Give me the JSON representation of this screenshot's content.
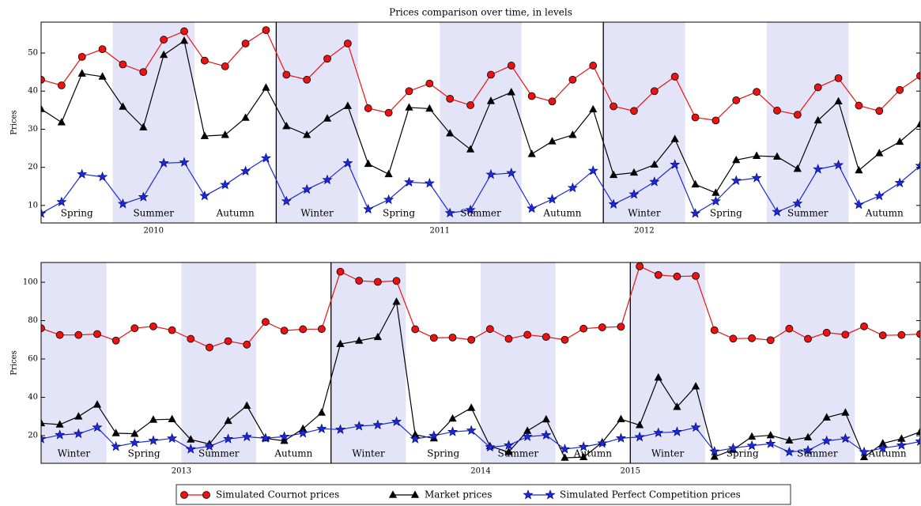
{
  "chart_data": [
    {
      "type": "line",
      "title": "Prices comparison over time, in levels",
      "ylabel": "Prices",
      "categories": [
        null,
        null,
        null,
        null,
        null,
        null,
        null,
        null,
        null,
        null,
        null,
        null,
        null,
        null,
        null,
        null,
        null,
        null,
        null,
        null,
        null,
        null,
        null,
        null,
        null,
        null,
        null,
        null,
        null,
        null,
        null,
        null,
        null,
        null,
        null,
        null,
        null,
        null,
        null,
        null,
        null,
        null,
        null,
        null
      ],
      "xlim": [
        0,
        43
      ],
      "ylim": [
        5.4,
        58.1
      ],
      "yticks": [
        10,
        20,
        30,
        40,
        50
      ],
      "series": [
        {
          "name": "Simulated Cournot prices",
          "color": "#ee1111",
          "marker": "circle",
          "values": [
            43,
            41.5,
            49,
            51,
            47,
            45,
            53.5,
            55.7,
            48,
            46.5,
            52.5,
            56,
            44.3,
            43,
            48.5,
            52.5,
            35.5,
            34.3,
            40,
            42,
            38,
            36.3,
            44.3,
            46.7,
            38.7,
            37.3,
            43,
            46.7,
            36,
            34.8,
            40,
            43.8,
            33.1,
            32.3,
            37.6,
            39.8,
            34.9,
            33.8,
            41,
            43.4,
            36.2,
            34.8,
            40.3,
            44
          ]
        },
        {
          "name": "Market prices",
          "color": "#000000",
          "marker": "triangle",
          "values": [
            35.3,
            31.8,
            44.6,
            43.8,
            35.9,
            30.5,
            49.5,
            53.2,
            28.2,
            28.5,
            33,
            40.9,
            30.8,
            28.5,
            32.8,
            36.1,
            20.9,
            18.2,
            35.7,
            35.4,
            28.9,
            24.7,
            37.4,
            39.7,
            23.5,
            26.8,
            28.5,
            35.2,
            18,
            18.6,
            20.7,
            27.4,
            15.5,
            13.3,
            21.9,
            23,
            22.8,
            19.6,
            32.3,
            37.3,
            19.2,
            23.7,
            26.7,
            31.3
          ]
        },
        {
          "name": "Simulated Perfect Competition prices",
          "color": "#1a2ad8",
          "marker": "star",
          "values": [
            7.9,
            10.9,
            18.2,
            17.5,
            10.4,
            12.2,
            21.1,
            21.3,
            12.5,
            15.4,
            19,
            22.4,
            11.1,
            14.2,
            16.7,
            21.1,
            9,
            11.5,
            16.1,
            15.8,
            8,
            8.8,
            18.1,
            18.5,
            9.2,
            11.6,
            14.6,
            19.1,
            10.3,
            12.9,
            16.2,
            20.7,
            7.9,
            11.1,
            16.5,
            17.2,
            8.3,
            10.5,
            19.5,
            20.6,
            10.2,
            12.5,
            15.9,
            20.4
          ]
        }
      ],
      "bands": [
        {
          "label": "Spring",
          "start": -0.5,
          "end": 3.5,
          "shaded": false
        },
        {
          "label": "Summer",
          "start": 3.5,
          "end": 7.5,
          "shaded": true
        },
        {
          "label": "Autumn",
          "start": 7.5,
          "end": 11.5,
          "shaded": false
        },
        {
          "label": "Winter",
          "start": 11.5,
          "end": 15.5,
          "shaded": true
        },
        {
          "label": "Spring",
          "start": 15.5,
          "end": 19.5,
          "shaded": false
        },
        {
          "label": "Summer",
          "start": 19.5,
          "end": 23.5,
          "shaded": true
        },
        {
          "label": "Autumn",
          "start": 23.5,
          "end": 27.5,
          "shaded": false
        },
        {
          "label": "Winter",
          "start": 27.5,
          "end": 31.5,
          "shaded": true
        },
        {
          "label": "Spring",
          "start": 31.5,
          "end": 35.5,
          "shaded": false
        },
        {
          "label": "Summer",
          "start": 35.5,
          "end": 39.5,
          "shaded": true
        },
        {
          "label": "Autumn",
          "start": 39.5,
          "end": 43.5,
          "shaded": false
        }
      ],
      "year_lines": [
        11.5,
        27.5
      ],
      "year_labels": [
        {
          "label": "2010",
          "at": 5.5
        },
        {
          "label": "2011",
          "at": 19.5
        },
        {
          "label": "2012",
          "at": 29.5
        }
      ]
    },
    {
      "type": "line",
      "ylabel": "Prices",
      "categories": [
        null,
        null,
        null,
        null,
        null,
        null,
        null,
        null,
        null,
        null,
        null,
        null,
        null,
        null,
        null,
        null,
        null,
        null,
        null,
        null,
        null,
        null,
        null,
        null,
        null,
        null,
        null,
        null,
        null,
        null,
        null,
        null,
        null,
        null,
        null,
        null,
        null,
        null,
        null,
        null,
        null,
        null,
        null,
        null,
        null,
        null,
        null,
        null
      ],
      "xlim": [
        0,
        47
      ],
      "ylim": [
        5.6,
        110.3
      ],
      "yticks": [
        20,
        40,
        60,
        80,
        100
      ],
      "series": [
        {
          "color": "#ee1111",
          "marker": "circle",
          "values": [
            76,
            72.5,
            72.5,
            73,
            69.6,
            76,
            77,
            75,
            70.5,
            66,
            69.3,
            67.5,
            79.3,
            74.8,
            75.5,
            75.6,
            105.5,
            100.8,
            100.2,
            100.7,
            75.5,
            71,
            71.2,
            70,
            75.6,
            70.5,
            72.6,
            71.5,
            70,
            75.8,
            76.5,
            76.8,
            108.3,
            103.8,
            103,
            103.3,
            75,
            70.6,
            70.8,
            69.8,
            75.8,
            70.5,
            73.7,
            72.7,
            77,
            72.3,
            72.5,
            73
          ]
        },
        {
          "color": "#000000",
          "marker": "triangle",
          "values": [
            26.5,
            25.8,
            30,
            36.2,
            21.3,
            21,
            28.3,
            28.6,
            18,
            15.6,
            27.7,
            35.6,
            18.6,
            17.3,
            23.6,
            32,
            67.8,
            69.5,
            71.4,
            89.8,
            20.5,
            18.6,
            28.9,
            34.5,
            14.5,
            11.5,
            22.5,
            28.5,
            8.5,
            8.8,
            16.5,
            28.6,
            25.5,
            50.3,
            35,
            45.7,
            9,
            12.7,
            19.5,
            20.2,
            17.5,
            19.1,
            29.5,
            32,
            8.8,
            16,
            18.4,
            22
          ]
        },
        {
          "color": "#1a2ad8",
          "marker": "star",
          "values": [
            18.3,
            20.4,
            21,
            24.3,
            14.3,
            16.3,
            17.4,
            18.6,
            13,
            14.5,
            18.3,
            19.4,
            18.7,
            19.5,
            21.3,
            23.6,
            23.2,
            25,
            25.6,
            27.3,
            18.3,
            20,
            22,
            22.7,
            14,
            15,
            19.5,
            20.3,
            13,
            14.2,
            16,
            18.7,
            19.3,
            21.5,
            22,
            24.3,
            11.8,
            13.5,
            14.8,
            15.8,
            11.5,
            12.3,
            17.3,
            18.5,
            11.5,
            13.5,
            15,
            17
          ]
        }
      ],
      "bands": [
        {
          "label": "Winter",
          "start": -0.5,
          "end": 3.5,
          "shaded": true
        },
        {
          "label": "Spring",
          "start": 3.5,
          "end": 7.5,
          "shaded": false
        },
        {
          "label": "Summer",
          "start": 7.5,
          "end": 11.5,
          "shaded": true
        },
        {
          "label": "Autumn",
          "start": 11.5,
          "end": 15.5,
          "shaded": false
        },
        {
          "label": "Winter",
          "start": 15.5,
          "end": 19.5,
          "shaded": true
        },
        {
          "label": "Spring",
          "start": 19.5,
          "end": 23.5,
          "shaded": false
        },
        {
          "label": "Summer",
          "start": 23.5,
          "end": 27.5,
          "shaded": true
        },
        {
          "label": "Autumn",
          "start": 27.5,
          "end": 31.5,
          "shaded": false
        },
        {
          "label": "Winter",
          "start": 31.5,
          "end": 35.5,
          "shaded": true
        },
        {
          "label": "Spring",
          "start": 35.5,
          "end": 39.5,
          "shaded": false
        },
        {
          "label": "Summer",
          "start": 39.5,
          "end": 43.5,
          "shaded": true
        },
        {
          "label": "Autumn",
          "start": 43.5,
          "end": 47.5,
          "shaded": false
        }
      ],
      "year_lines": [
        15.5,
        31.5
      ],
      "year_labels": [
        {
          "label": "2013",
          "at": 7.5
        },
        {
          "label": "2014",
          "at": 23.5
        },
        {
          "label": "2015",
          "at": 31.5
        }
      ]
    }
  ]
}
